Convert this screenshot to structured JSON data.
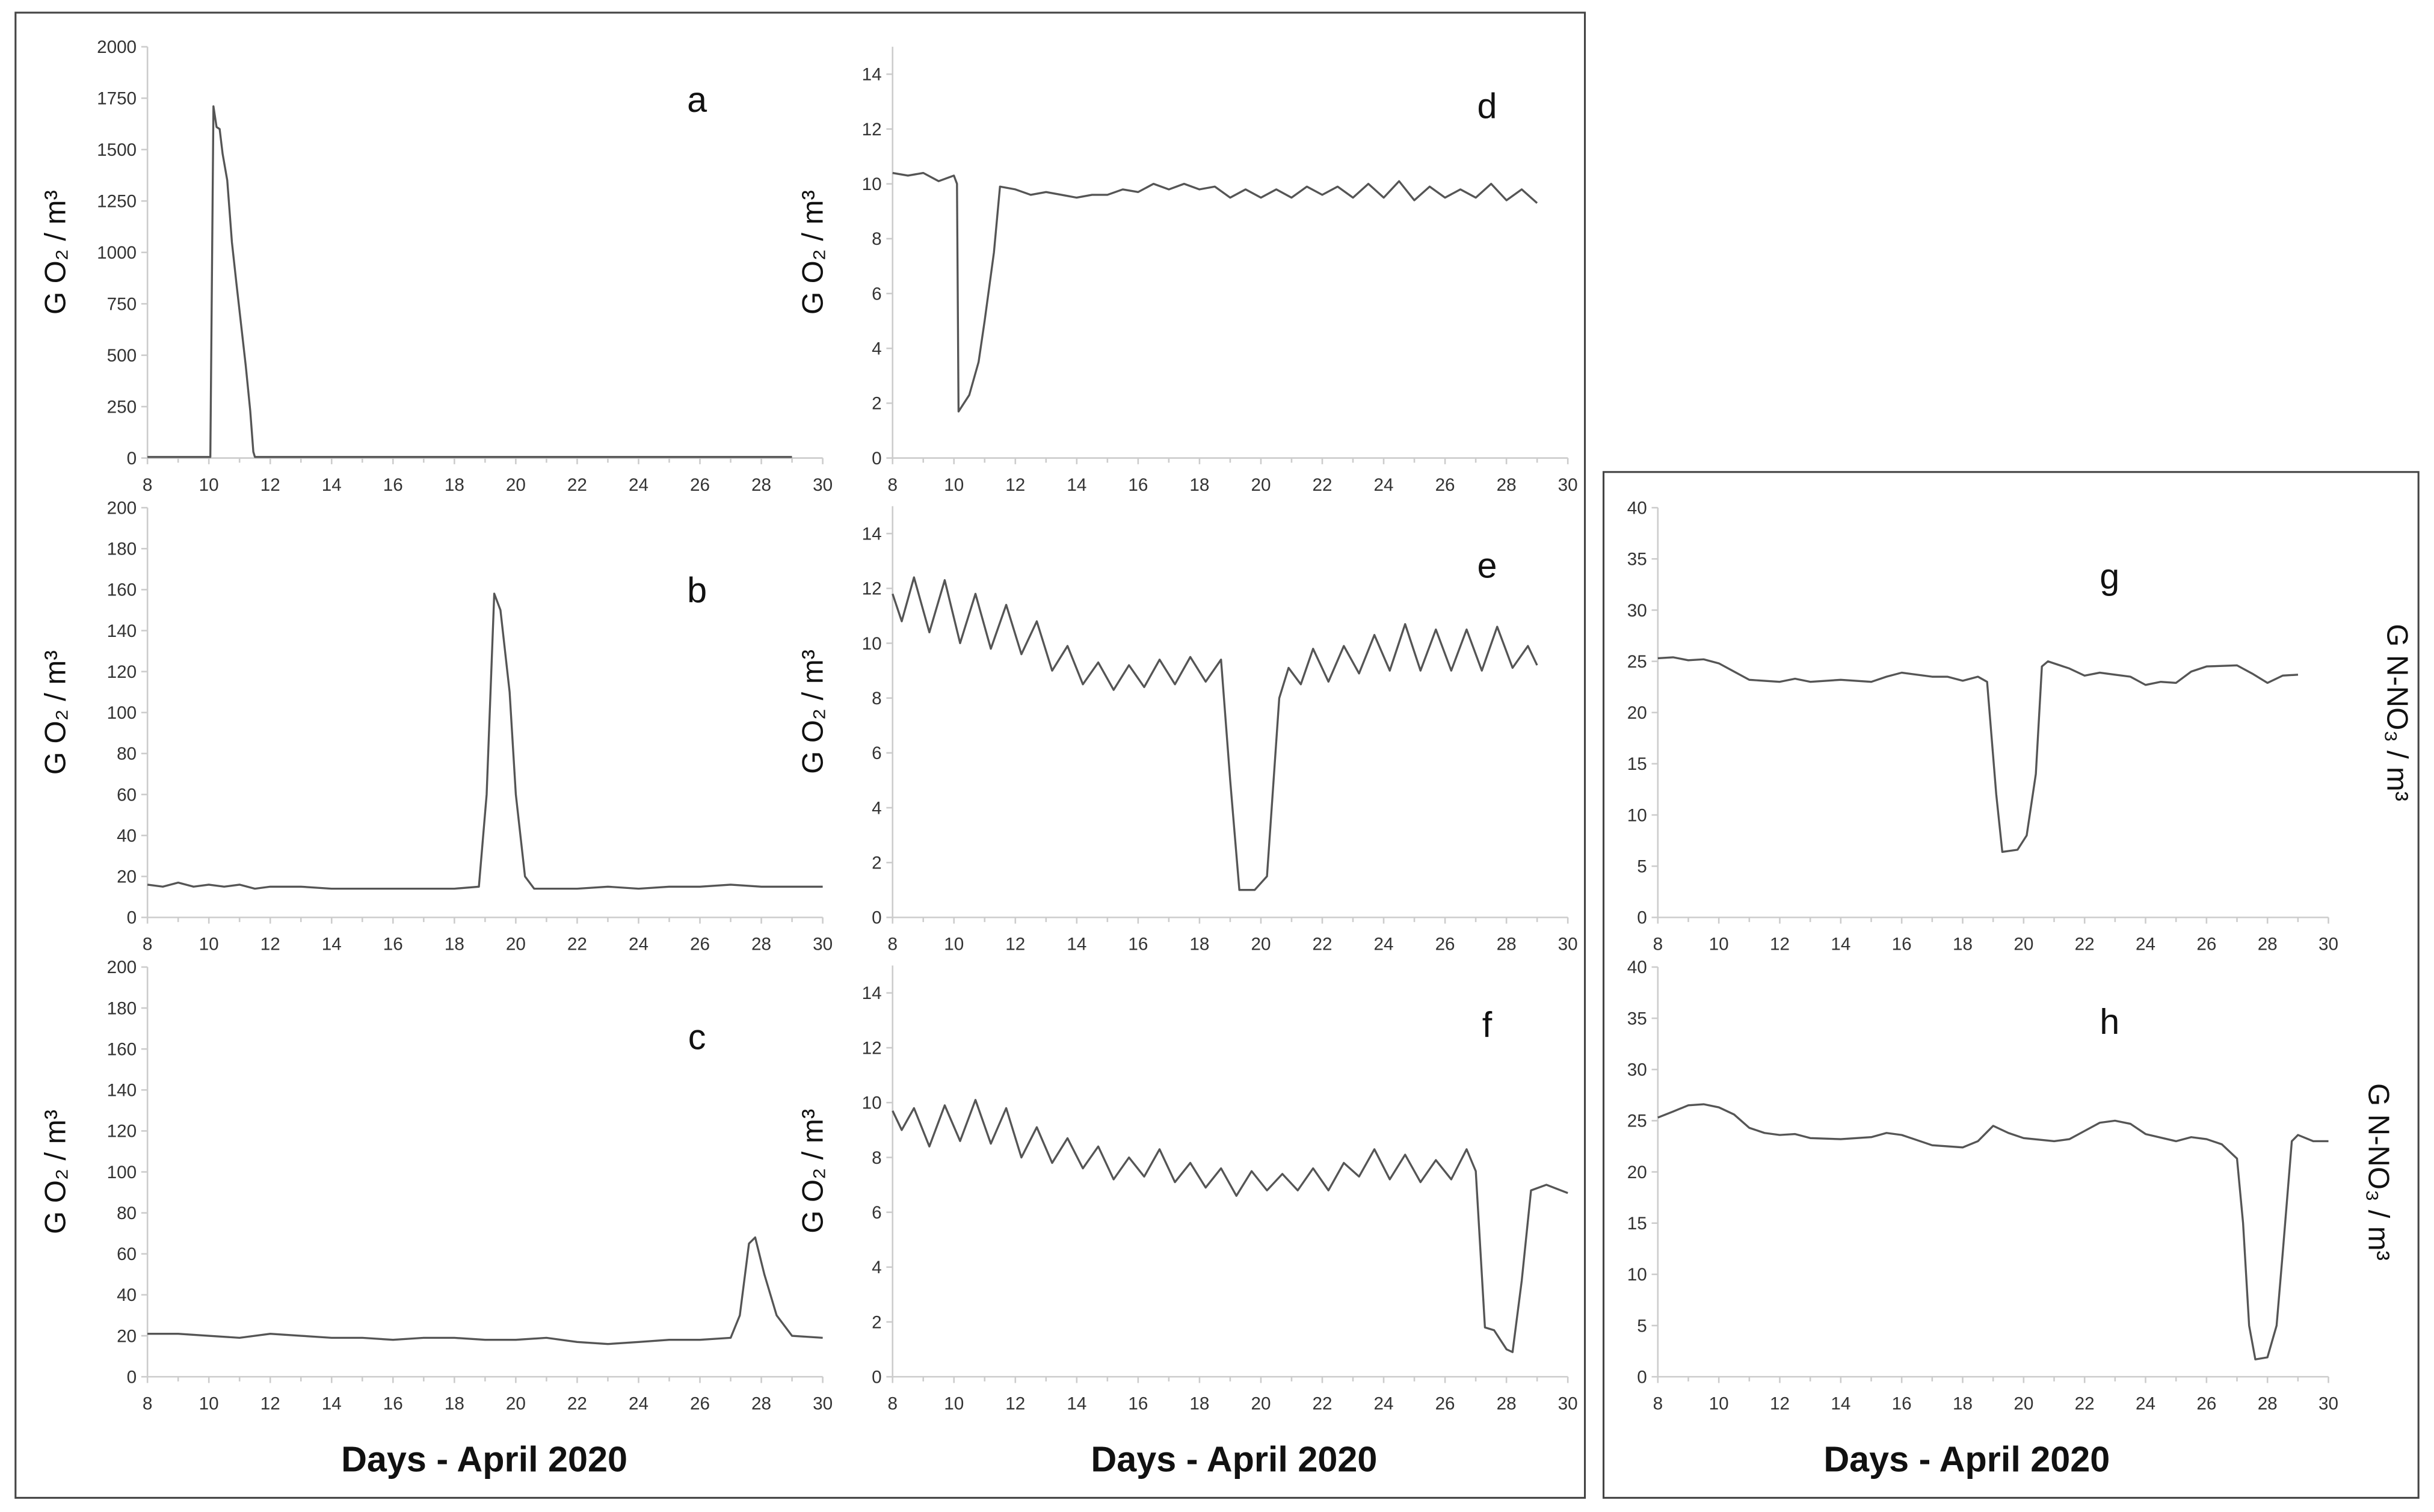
{
  "chart_data": [
    {
      "panel": "a",
      "type": "line",
      "label": "a",
      "ylabel": "G O₂ / m³",
      "xlim": [
        8,
        30
      ],
      "ylim": [
        0,
        2000
      ],
      "xticks": [
        8,
        10,
        12,
        14,
        16,
        18,
        20,
        22,
        24,
        26,
        28,
        30
      ],
      "yticks": [
        0,
        250,
        500,
        750,
        1000,
        1250,
        1500,
        1750,
        2000
      ],
      "points": [
        [
          8,
          5
        ],
        [
          10.05,
          5
        ],
        [
          10.15,
          1710
        ],
        [
          10.25,
          1610
        ],
        [
          10.35,
          1600
        ],
        [
          10.45,
          1480
        ],
        [
          10.6,
          1350
        ],
        [
          10.75,
          1050
        ],
        [
          10.9,
          850
        ],
        [
          11.05,
          650
        ],
        [
          11.2,
          450
        ],
        [
          11.35,
          230
        ],
        [
          11.45,
          30
        ],
        [
          11.5,
          5
        ],
        [
          29,
          5
        ]
      ]
    },
    {
      "panel": "b",
      "type": "line",
      "label": "b",
      "ylabel": "G O₂ / m³",
      "xlim": [
        8,
        30
      ],
      "ylim": [
        0,
        200
      ],
      "xticks": [
        8,
        10,
        12,
        14,
        16,
        18,
        20,
        22,
        24,
        26,
        28,
        30
      ],
      "yticks": [
        0,
        20,
        40,
        60,
        80,
        100,
        120,
        140,
        160,
        180,
        200
      ],
      "points": [
        [
          8,
          16
        ],
        [
          8.5,
          15
        ],
        [
          9,
          17
        ],
        [
          9.5,
          15
        ],
        [
          10,
          16
        ],
        [
          10.5,
          15
        ],
        [
          11,
          16
        ],
        [
          11.5,
          14
        ],
        [
          12,
          15
        ],
        [
          13,
          15
        ],
        [
          14,
          14
        ],
        [
          15,
          14
        ],
        [
          16,
          14
        ],
        [
          17,
          14
        ],
        [
          18,
          14
        ],
        [
          18.8,
          15
        ],
        [
          19.05,
          60
        ],
        [
          19.3,
          158
        ],
        [
          19.5,
          150
        ],
        [
          19.8,
          110
        ],
        [
          20,
          60
        ],
        [
          20.3,
          20
        ],
        [
          20.6,
          14
        ],
        [
          21,
          14
        ],
        [
          22,
          14
        ],
        [
          23,
          15
        ],
        [
          24,
          14
        ],
        [
          25,
          15
        ],
        [
          26,
          15
        ],
        [
          27,
          16
        ],
        [
          28,
          15
        ],
        [
          29,
          15
        ],
        [
          30,
          15
        ]
      ]
    },
    {
      "panel": "c",
      "type": "line",
      "label": "c",
      "ylabel": "G O₂ / m³",
      "xlim": [
        8,
        30
      ],
      "ylim": [
        0,
        200
      ],
      "xticks": [
        8,
        10,
        12,
        14,
        16,
        18,
        20,
        22,
        24,
        26,
        28,
        30
      ],
      "yticks": [
        0,
        20,
        40,
        60,
        80,
        100,
        120,
        140,
        160,
        180,
        200
      ],
      "points": [
        [
          8,
          21
        ],
        [
          9,
          21
        ],
        [
          10,
          20
        ],
        [
          11,
          19
        ],
        [
          12,
          21
        ],
        [
          13,
          20
        ],
        [
          14,
          19
        ],
        [
          15,
          19
        ],
        [
          16,
          18
        ],
        [
          17,
          19
        ],
        [
          18,
          19
        ],
        [
          19,
          18
        ],
        [
          20,
          18
        ],
        [
          21,
          19
        ],
        [
          22,
          17
        ],
        [
          23,
          16
        ],
        [
          24,
          17
        ],
        [
          25,
          18
        ],
        [
          26,
          18
        ],
        [
          27,
          19
        ],
        [
          27.3,
          30
        ],
        [
          27.6,
          65
        ],
        [
          27.8,
          68
        ],
        [
          28.1,
          50
        ],
        [
          28.5,
          30
        ],
        [
          29,
          20
        ],
        [
          30,
          19
        ]
      ]
    },
    {
      "panel": "d",
      "type": "line",
      "label": "d",
      "ylabel": "G O₂ / m³",
      "xlim": [
        8,
        30
      ],
      "ylim": [
        0,
        15
      ],
      "xticks": [
        8,
        10,
        12,
        14,
        16,
        18,
        20,
        22,
        24,
        26,
        28,
        30
      ],
      "yticks": [
        0,
        2,
        4,
        6,
        8,
        10,
        12,
        14
      ],
      "points": [
        [
          8,
          10.4
        ],
        [
          8.5,
          10.3
        ],
        [
          9,
          10.4
        ],
        [
          9.5,
          10.1
        ],
        [
          10,
          10.3
        ],
        [
          10.1,
          10
        ],
        [
          10.15,
          1.7
        ],
        [
          10.5,
          2.3
        ],
        [
          10.8,
          3.5
        ],
        [
          11,
          5
        ],
        [
          11.3,
          7.5
        ],
        [
          11.5,
          9.9
        ],
        [
          12,
          9.8
        ],
        [
          12.5,
          9.6
        ],
        [
          13,
          9.7
        ],
        [
          13.5,
          9.6
        ],
        [
          14,
          9.5
        ],
        [
          14.5,
          9.6
        ],
        [
          15,
          9.6
        ],
        [
          15.5,
          9.8
        ],
        [
          16,
          9.7
        ],
        [
          16.5,
          10
        ],
        [
          17,
          9.8
        ],
        [
          17.5,
          10
        ],
        [
          18,
          9.8
        ],
        [
          18.5,
          9.9
        ],
        [
          19,
          9.5
        ],
        [
          19.5,
          9.8
        ],
        [
          20,
          9.5
        ],
        [
          20.5,
          9.8
        ],
        [
          21,
          9.5
        ],
        [
          21.5,
          9.9
        ],
        [
          22,
          9.6
        ],
        [
          22.5,
          9.9
        ],
        [
          23,
          9.5
        ],
        [
          23.5,
          10
        ],
        [
          24,
          9.5
        ],
        [
          24.5,
          10.1
        ],
        [
          25,
          9.4
        ],
        [
          25.5,
          9.9
        ],
        [
          26,
          9.5
        ],
        [
          26.5,
          9.8
        ],
        [
          27,
          9.5
        ],
        [
          27.5,
          10
        ],
        [
          28,
          9.4
        ],
        [
          28.5,
          9.8
        ],
        [
          29,
          9.3
        ]
      ]
    },
    {
      "panel": "e",
      "type": "line",
      "label": "e",
      "ylabel": "G O₂ / m³",
      "xlim": [
        8,
        30
      ],
      "ylim": [
        0,
        15
      ],
      "xticks": [
        8,
        10,
        12,
        14,
        16,
        18,
        20,
        22,
        24,
        26,
        28,
        30
      ],
      "yticks": [
        0,
        2,
        4,
        6,
        8,
        10,
        12,
        14
      ],
      "points": [
        [
          8,
          11.8
        ],
        [
          8.3,
          10.8
        ],
        [
          8.7,
          12.4
        ],
        [
          9.2,
          10.4
        ],
        [
          9.7,
          12.3
        ],
        [
          10.2,
          10
        ],
        [
          10.7,
          11.8
        ],
        [
          11.2,
          9.8
        ],
        [
          11.7,
          11.4
        ],
        [
          12.2,
          9.6
        ],
        [
          12.7,
          10.8
        ],
        [
          13.2,
          9
        ],
        [
          13.7,
          9.9
        ],
        [
          14.2,
          8.5
        ],
        [
          14.7,
          9.3
        ],
        [
          15.2,
          8.3
        ],
        [
          15.7,
          9.2
        ],
        [
          16.2,
          8.4
        ],
        [
          16.7,
          9.4
        ],
        [
          17.2,
          8.5
        ],
        [
          17.7,
          9.5
        ],
        [
          18.2,
          8.6
        ],
        [
          18.7,
          9.4
        ],
        [
          19,
          5
        ],
        [
          19.3,
          1
        ],
        [
          19.8,
          1
        ],
        [
          20.2,
          1.5
        ],
        [
          20.6,
          8
        ],
        [
          20.9,
          9.1
        ],
        [
          21.3,
          8.5
        ],
        [
          21.7,
          9.8
        ],
        [
          22.2,
          8.6
        ],
        [
          22.7,
          9.9
        ],
        [
          23.2,
          8.9
        ],
        [
          23.7,
          10.3
        ],
        [
          24.2,
          9
        ],
        [
          24.7,
          10.7
        ],
        [
          25.2,
          9
        ],
        [
          25.7,
          10.5
        ],
        [
          26.2,
          9
        ],
        [
          26.7,
          10.5
        ],
        [
          27.2,
          9
        ],
        [
          27.7,
          10.6
        ],
        [
          28.2,
          9.1
        ],
        [
          28.7,
          9.9
        ],
        [
          29,
          9.2
        ]
      ]
    },
    {
      "panel": "f",
      "type": "line",
      "label": "f",
      "ylabel": "G O₂ / m³",
      "xlim": [
        8,
        30
      ],
      "ylim": [
        0,
        15
      ],
      "xticks": [
        8,
        10,
        12,
        14,
        16,
        18,
        20,
        22,
        24,
        26,
        28,
        30
      ],
      "yticks": [
        0,
        2,
        4,
        6,
        8,
        10,
        12,
        14
      ],
      "points": [
        [
          8,
          9.7
        ],
        [
          8.3,
          9
        ],
        [
          8.7,
          9.8
        ],
        [
          9.2,
          8.4
        ],
        [
          9.7,
          9.9
        ],
        [
          10.2,
          8.6
        ],
        [
          10.7,
          10.1
        ],
        [
          11.2,
          8.5
        ],
        [
          11.7,
          9.8
        ],
        [
          12.2,
          8
        ],
        [
          12.7,
          9.1
        ],
        [
          13.2,
          7.8
        ],
        [
          13.7,
          8.7
        ],
        [
          14.2,
          7.6
        ],
        [
          14.7,
          8.4
        ],
        [
          15.2,
          7.2
        ],
        [
          15.7,
          8
        ],
        [
          16.2,
          7.3
        ],
        [
          16.7,
          8.3
        ],
        [
          17.2,
          7.1
        ],
        [
          17.7,
          7.8
        ],
        [
          18.2,
          6.9
        ],
        [
          18.7,
          7.6
        ],
        [
          19.2,
          6.6
        ],
        [
          19.7,
          7.5
        ],
        [
          20.2,
          6.8
        ],
        [
          20.7,
          7.4
        ],
        [
          21.2,
          6.8
        ],
        [
          21.7,
          7.6
        ],
        [
          22.2,
          6.8
        ],
        [
          22.7,
          7.8
        ],
        [
          23.2,
          7.3
        ],
        [
          23.7,
          8.3
        ],
        [
          24.2,
          7.2
        ],
        [
          24.7,
          8.1
        ],
        [
          25.2,
          7.1
        ],
        [
          25.7,
          7.9
        ],
        [
          26.2,
          7.2
        ],
        [
          26.7,
          8.3
        ],
        [
          27,
          7.5
        ],
        [
          27.3,
          1.8
        ],
        [
          27.6,
          1.7
        ],
        [
          28,
          1
        ],
        [
          28.2,
          0.9
        ],
        [
          28.5,
          3.5
        ],
        [
          28.8,
          6.8
        ],
        [
          29.3,
          7
        ],
        [
          30,
          6.7
        ]
      ]
    },
    {
      "panel": "g",
      "type": "line",
      "label": "g",
      "ylabel": "G N-NO₃ / m³",
      "xlim": [
        8,
        30
      ],
      "ylim": [
        0,
        40
      ],
      "xticks": [
        8,
        10,
        12,
        14,
        16,
        18,
        20,
        22,
        24,
        26,
        28,
        30
      ],
      "yticks": [
        0,
        5,
        10,
        15,
        20,
        25,
        30,
        35,
        40
      ],
      "points": [
        [
          8,
          25.3
        ],
        [
          8.5,
          25.4
        ],
        [
          9,
          25.1
        ],
        [
          9.5,
          25.2
        ],
        [
          10,
          24.8
        ],
        [
          10.5,
          24
        ],
        [
          11,
          23.2
        ],
        [
          12,
          23
        ],
        [
          12.5,
          23.3
        ],
        [
          13,
          23
        ],
        [
          14,
          23.2
        ],
        [
          15,
          23
        ],
        [
          15.5,
          23.5
        ],
        [
          16,
          23.9
        ],
        [
          17,
          23.5
        ],
        [
          17.5,
          23.5
        ],
        [
          18,
          23.1
        ],
        [
          18.5,
          23.5
        ],
        [
          18.8,
          23
        ],
        [
          19.1,
          12
        ],
        [
          19.3,
          6.4
        ],
        [
          19.8,
          6.6
        ],
        [
          20.1,
          8
        ],
        [
          20.4,
          14
        ],
        [
          20.6,
          24.5
        ],
        [
          20.8,
          25
        ],
        [
          21.5,
          24.3
        ],
        [
          22,
          23.6
        ],
        [
          22.5,
          23.9
        ],
        [
          23,
          23.7
        ],
        [
          23.5,
          23.5
        ],
        [
          24,
          22.7
        ],
        [
          24.5,
          23
        ],
        [
          25,
          22.9
        ],
        [
          25.5,
          24
        ],
        [
          26,
          24.5
        ],
        [
          27,
          24.6
        ],
        [
          27.5,
          23.8
        ],
        [
          28,
          22.9
        ],
        [
          28.5,
          23.6
        ],
        [
          29,
          23.7
        ]
      ]
    },
    {
      "panel": "h",
      "type": "line",
      "label": "h",
      "ylabel": "G N-NO₃ / m³",
      "xlim": [
        8,
        30
      ],
      "ylim": [
        0,
        40
      ],
      "xticks": [
        8,
        10,
        12,
        14,
        16,
        18,
        20,
        22,
        24,
        26,
        28,
        30
      ],
      "yticks": [
        0,
        5,
        10,
        15,
        20,
        25,
        30,
        35,
        40
      ],
      "points": [
        [
          8,
          25.3
        ],
        [
          8.5,
          25.9
        ],
        [
          9,
          26.5
        ],
        [
          9.5,
          26.6
        ],
        [
          10,
          26.3
        ],
        [
          10.5,
          25.6
        ],
        [
          11,
          24.3
        ],
        [
          11.5,
          23.8
        ],
        [
          12,
          23.6
        ],
        [
          12.5,
          23.7
        ],
        [
          13,
          23.3
        ],
        [
          14,
          23.2
        ],
        [
          15,
          23.4
        ],
        [
          15.5,
          23.8
        ],
        [
          16,
          23.6
        ],
        [
          17,
          22.6
        ],
        [
          18,
          22.4
        ],
        [
          18.5,
          23
        ],
        [
          19,
          24.5
        ],
        [
          19.5,
          23.8
        ],
        [
          20,
          23.3
        ],
        [
          21,
          23
        ],
        [
          21.5,
          23.2
        ],
        [
          22,
          24
        ],
        [
          22.5,
          24.8
        ],
        [
          23,
          25
        ],
        [
          23.5,
          24.7
        ],
        [
          24,
          23.7
        ],
        [
          25,
          23
        ],
        [
          25.5,
          23.4
        ],
        [
          26,
          23.2
        ],
        [
          26.5,
          22.7
        ],
        [
          27,
          21.3
        ],
        [
          27.2,
          15
        ],
        [
          27.4,
          5
        ],
        [
          27.6,
          1.7
        ],
        [
          28,
          1.9
        ],
        [
          28.3,
          5
        ],
        [
          28.5,
          12
        ],
        [
          28.8,
          23
        ],
        [
          29,
          23.6
        ],
        [
          29.5,
          23
        ],
        [
          30,
          23
        ]
      ]
    }
  ],
  "xaxis_titles": [
    "Days - April 2020",
    "Days - April 2020",
    "Days - April 2020"
  ],
  "colors": {
    "line": "#555555",
    "axis": "#cccccc",
    "frame": "#444444"
  }
}
